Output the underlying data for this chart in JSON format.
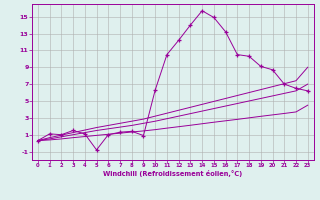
{
  "x": [
    0,
    1,
    2,
    3,
    4,
    5,
    6,
    7,
    8,
    9,
    10,
    11,
    12,
    13,
    14,
    15,
    16,
    17,
    18,
    19,
    20,
    21,
    22,
    23
  ],
  "y_main": [
    0.3,
    1.1,
    1.0,
    1.5,
    1.1,
    -0.8,
    1.0,
    1.3,
    1.4,
    0.9,
    6.3,
    10.5,
    12.2,
    14.0,
    15.7,
    14.9,
    13.2,
    10.5,
    10.3,
    9.1,
    8.7,
    7.0,
    6.5,
    6.2
  ],
  "y_line1": [
    0.3,
    0.65,
    0.95,
    1.25,
    1.55,
    1.85,
    2.1,
    2.35,
    2.6,
    2.85,
    3.2,
    3.55,
    3.9,
    4.25,
    4.6,
    4.95,
    5.3,
    5.65,
    6.0,
    6.35,
    6.7,
    7.05,
    7.4,
    9.0
  ],
  "y_line2": [
    0.3,
    0.5,
    0.75,
    1.0,
    1.25,
    1.5,
    1.7,
    1.9,
    2.1,
    2.35,
    2.6,
    2.9,
    3.2,
    3.5,
    3.8,
    4.1,
    4.4,
    4.7,
    5.0,
    5.3,
    5.6,
    5.9,
    6.2,
    7.0
  ],
  "y_line3": [
    0.3,
    0.38,
    0.5,
    0.65,
    0.78,
    0.92,
    1.05,
    1.18,
    1.32,
    1.45,
    1.6,
    1.78,
    1.95,
    2.12,
    2.3,
    2.48,
    2.65,
    2.82,
    3.0,
    3.18,
    3.35,
    3.52,
    3.7,
    4.5
  ],
  "bg_color": "#dff0ee",
  "line_color": "#990099",
  "grid_color": "#b0b0b0",
  "ylabel_values": [
    -1,
    1,
    3,
    5,
    7,
    9,
    11,
    13,
    15
  ],
  "xlabel": "Windchill (Refroidissement éolien,°C)",
  "xlim": [
    -0.5,
    23.5
  ],
  "ylim": [
    -2.0,
    16.5
  ],
  "figsize": [
    3.2,
    2.0
  ],
  "dpi": 100
}
